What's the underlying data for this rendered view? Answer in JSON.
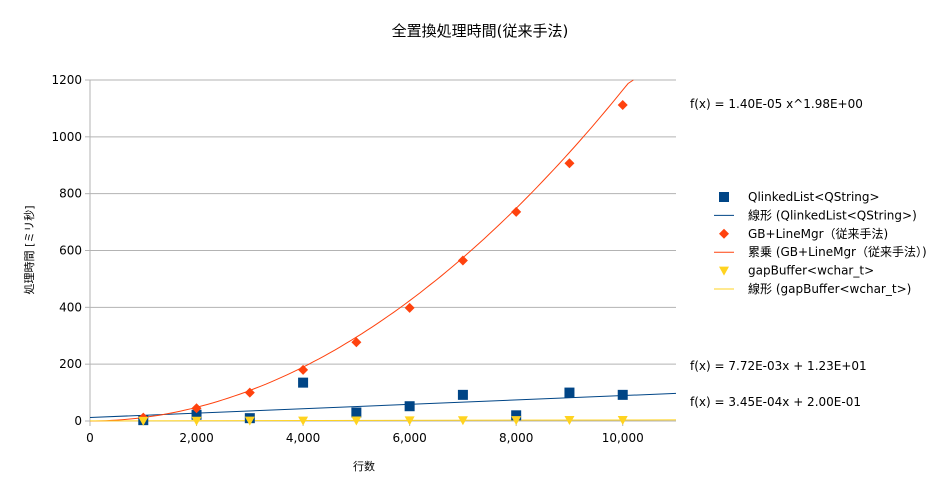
{
  "chart_data": {
    "type": "scatter",
    "title": "全置換処理時間(従来手法)",
    "xlabel": "行数",
    "ylabel": "処理時間 [ミリ秒]",
    "xlim": [
      0,
      11000
    ],
    "ylim": [
      0,
      1200
    ],
    "x_ticks": [
      0,
      2000,
      4000,
      6000,
      8000,
      10000
    ],
    "x_tick_labels": [
      "0",
      "2,000",
      "4,000",
      "6,000",
      "8,000",
      "10,000"
    ],
    "y_ticks": [
      0,
      200,
      400,
      600,
      800,
      1000,
      1200
    ],
    "y_tick_labels": [
      "0",
      "200",
      "400",
      "600",
      "800",
      "1000",
      "1200"
    ],
    "grid": "horizontal",
    "legend_position": "right",
    "series": [
      {
        "name": "QlinkedList<QString>",
        "marker": "square",
        "color": "#004586",
        "x": [
          1000,
          2000,
          3000,
          4000,
          5000,
          6000,
          7000,
          8000,
          9000,
          10000
        ],
        "y": [
          3,
          22,
          10,
          135,
          30,
          52,
          92,
          20,
          100,
          92
        ]
      },
      {
        "name": "GB+LineMgr（従来手法)",
        "marker": "diamond",
        "color": "#ff420e",
        "x": [
          1000,
          2000,
          3000,
          4000,
          5000,
          6000,
          7000,
          8000,
          9000,
          10000
        ],
        "y": [
          12,
          45,
          100,
          180,
          277,
          398,
          565,
          736,
          907,
          1112
        ]
      },
      {
        "name": "gapBuffer<wchar_t>",
        "marker": "triangle-down",
        "color": "#ffd320",
        "x": [
          1000,
          2000,
          3000,
          4000,
          5000,
          6000,
          7000,
          8000,
          9000,
          10000
        ],
        "y": [
          0.5,
          0.7,
          1.2,
          1.5,
          1.9,
          2.2,
          2.6,
          2.9,
          3.3,
          3.6
        ]
      }
    ],
    "trendlines": [
      {
        "name": "線形 (QlinkedList<QString>)",
        "kind": "linear",
        "color": "#004586",
        "equation": "f(x) = 7.72E-03x + 1.23E+01",
        "slope": 0.00772,
        "intercept": 12.3
      },
      {
        "name": "累乗 (GB+LineMgr（従来手法）)",
        "kind": "power",
        "color": "#ff420e",
        "equation": "f(x) = 1.40E-05 x^1.98E+00",
        "coef": 1.4e-05,
        "exponent": 1.98
      },
      {
        "name": "線形 (gapBuffer<wchar_t>)",
        "kind": "linear",
        "color": "#ffd320",
        "equation": "f(x) = 3.45E-04x + 2.00E-01",
        "slope": 0.000345,
        "intercept": 0.2
      }
    ],
    "legend": [
      {
        "label": "QlinkedList<QString>",
        "symbol": "square",
        "color": "#004586"
      },
      {
        "label": "線形 (QlinkedList<QString>)",
        "symbol": "line",
        "color": "#004586"
      },
      {
        "label": "GB+LineMgr（従来手法)",
        "symbol": "diamond",
        "color": "#ff420e"
      },
      {
        "label": "累乗 (GB+LineMgr（従来手法）)",
        "symbol": "line",
        "color": "#ff420e"
      },
      {
        "label": "gapBuffer<wchar_t>",
        "symbol": "triangle-down",
        "color": "#ffd320"
      },
      {
        "label": "線形 (gapBuffer<wchar_t>)",
        "symbol": "line",
        "color": "#ffd320"
      }
    ]
  }
}
